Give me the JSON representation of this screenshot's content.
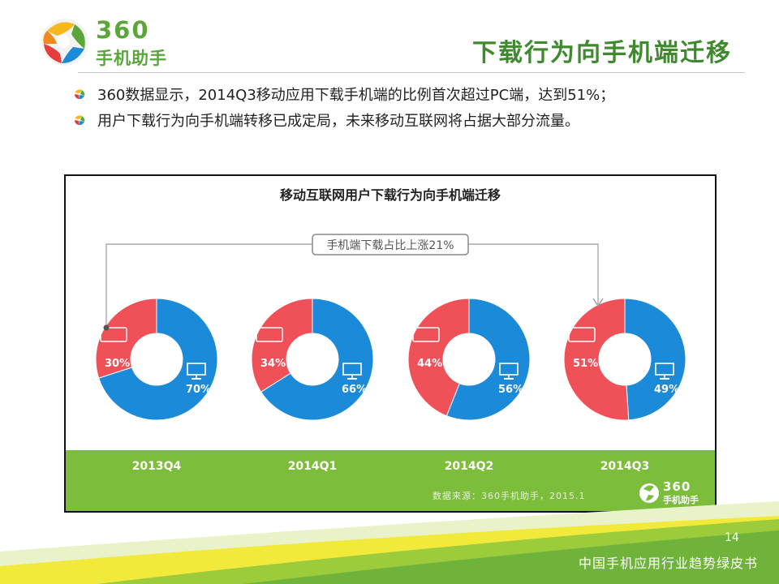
{
  "brand": {
    "logo_line1": "360",
    "logo_line2": "手机助手",
    "band_logo_line1": "360",
    "band_logo_line2": "手机助手"
  },
  "header": {
    "title": "下载行为向手机端迁移"
  },
  "bullets": [
    "360数据显示，2014Q3移动应用下载手机端的比例首次超过PC端，达到51%；",
    "用户下载行为向手机端转移已成定局，未来移动互联网将占据大部分流量。"
  ],
  "colors": {
    "mobile": "#f05058",
    "pc": "#1b8ad8",
    "accent_green": "#7cbd3c",
    "title_green": "#3f8a2e"
  },
  "icons": {
    "mobile": "phone-icon",
    "pc": "monitor-icon"
  },
  "chart_data": {
    "type": "pie",
    "style": "donut",
    "title": "移动互联网用户下载行为向手机端迁移",
    "annotation": "手机端下载占比上涨21%",
    "categories": [
      "2013Q4",
      "2014Q1",
      "2014Q2",
      "2014Q3"
    ],
    "series": [
      {
        "icon": "phone-icon",
        "values": [
          30,
          34,
          44,
          51
        ],
        "labels": [
          "30%",
          "34%",
          "44%",
          "51%"
        ]
      },
      {
        "icon": "monitor-icon",
        "values": [
          70,
          66,
          56,
          49
        ],
        "labels": [
          "70%",
          "66%",
          "56%",
          "49%"
        ]
      }
    ],
    "source": "数据来源：360手机助手，2015.1"
  },
  "footer": {
    "page_number": "14",
    "text": "中国手机应用行业趋势绿皮书"
  }
}
